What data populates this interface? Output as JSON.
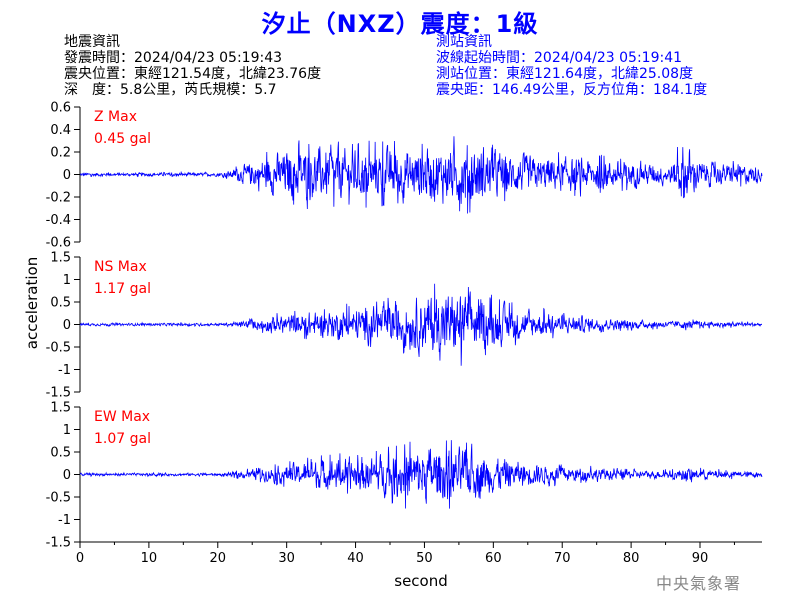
{
  "title": "汐止（NXZ）震度：1級",
  "quake_info": {
    "heading": "地震資訊",
    "time": "發震時間：2024/04/23 05:19:43",
    "epicenter": "震央位置：東經121.54度，北緯23.76度",
    "depth_magnitude": "深　度：5.8公里，芮氏規模：5.7"
  },
  "station_info": {
    "heading": "測站資訊",
    "wave_start": "波線起始時間：2024/04/23 05:19:41",
    "location": "測站位置：東經121.64度，北緯25.08度",
    "distance": "震央距：146.49公里，反方位角：184.1度"
  },
  "credit": "中央氣象署",
  "colors": {
    "title": "#0000ff",
    "trace": "#0000ff",
    "max_label": "#ff0000",
    "station_text": "#0000ff",
    "credit": "#888888"
  },
  "chart_data": {
    "type": "line",
    "xlabel": "second",
    "ylabel": "acceleration",
    "xlim": [
      0,
      99
    ],
    "x_ticks": [
      0,
      10,
      20,
      30,
      40,
      50,
      60,
      70,
      80,
      90
    ],
    "panels": [
      {
        "name": "Z",
        "max_label": "Z Max",
        "max_value": "0.45 gal",
        "ylim": [
          -0.6,
          0.6
        ],
        "y_ticks": [
          -0.6,
          -0.4,
          -0.2,
          0,
          0.2,
          0.4,
          0.6
        ],
        "y_tick_labels": [
          "-0.6",
          "-0.4",
          "-0.2",
          "0",
          "0.2",
          "0.4",
          "0.6"
        ],
        "envelope": [
          [
            0,
            0.02
          ],
          [
            10,
            0.02
          ],
          [
            20,
            0.02
          ],
          [
            22,
            0.05
          ],
          [
            24,
            0.12
          ],
          [
            27,
            0.22
          ],
          [
            30,
            0.28
          ],
          [
            33,
            0.32
          ],
          [
            36,
            0.3
          ],
          [
            40,
            0.3
          ],
          [
            45,
            0.3
          ],
          [
            50,
            0.3
          ],
          [
            55,
            0.36
          ],
          [
            57,
            0.38
          ],
          [
            60,
            0.3
          ],
          [
            63,
            0.24
          ],
          [
            66,
            0.2
          ],
          [
            68,
            0.2
          ],
          [
            70,
            0.2
          ],
          [
            73,
            0.2
          ],
          [
            76,
            0.18
          ],
          [
            80,
            0.15
          ],
          [
            84,
            0.12
          ],
          [
            86,
            0.12
          ],
          [
            87.5,
            0.38
          ],
          [
            88.5,
            0.3
          ],
          [
            90,
            0.16
          ],
          [
            93,
            0.12
          ],
          [
            96,
            0.12
          ],
          [
            99,
            0.1
          ]
        ]
      },
      {
        "name": "NS",
        "max_label": "NS Max",
        "max_value": "1.17 gal",
        "ylim": [
          -1.5,
          1.5
        ],
        "y_ticks": [
          -1.5,
          -1,
          -0.5,
          0,
          0.5,
          1,
          1.5
        ],
        "y_tick_labels": [
          "-1.5",
          "-1",
          "-0.5",
          "0",
          "0.5",
          "1",
          "1.5"
        ],
        "envelope": [
          [
            0,
            0.04
          ],
          [
            10,
            0.04
          ],
          [
            20,
            0.04
          ],
          [
            22,
            0.06
          ],
          [
            24,
            0.12
          ],
          [
            27,
            0.2
          ],
          [
            30,
            0.3
          ],
          [
            33,
            0.36
          ],
          [
            36,
            0.4
          ],
          [
            40,
            0.5
          ],
          [
            44,
            0.6
          ],
          [
            47,
            0.7
          ],
          [
            50,
            0.85
          ],
          [
            53,
            1.0
          ],
          [
            55,
            0.95
          ],
          [
            57,
            0.85
          ],
          [
            60,
            0.65
          ],
          [
            63,
            0.5
          ],
          [
            66,
            0.38
          ],
          [
            70,
            0.3
          ],
          [
            74,
            0.22
          ],
          [
            78,
            0.16
          ],
          [
            82,
            0.12
          ],
          [
            86,
            0.1
          ],
          [
            88,
            0.14
          ],
          [
            90,
            0.1
          ],
          [
            95,
            0.07
          ],
          [
            99,
            0.06
          ]
        ]
      },
      {
        "name": "EW",
        "max_label": "EW Max",
        "max_value": "1.07 gal",
        "ylim": [
          -1.5,
          1.5
        ],
        "y_ticks": [
          -1.5,
          -1,
          -0.5,
          0,
          0.5,
          1,
          1.5
        ],
        "y_tick_labels": [
          "-1.5",
          "-1",
          "-0.5",
          "0",
          "0.5",
          "1",
          "1.5"
        ],
        "envelope": [
          [
            0,
            0.04
          ],
          [
            10,
            0.04
          ],
          [
            20,
            0.04
          ],
          [
            22,
            0.07
          ],
          [
            24,
            0.12
          ],
          [
            27,
            0.2
          ],
          [
            30,
            0.3
          ],
          [
            33,
            0.38
          ],
          [
            36,
            0.45
          ],
          [
            40,
            0.5
          ],
          [
            44,
            0.6
          ],
          [
            47,
            0.75
          ],
          [
            50,
            0.85
          ],
          [
            53,
            0.8
          ],
          [
            56,
            0.75
          ],
          [
            58,
            0.7
          ],
          [
            60,
            0.55
          ],
          [
            63,
            0.42
          ],
          [
            66,
            0.32
          ],
          [
            70,
            0.25
          ],
          [
            74,
            0.2
          ],
          [
            78,
            0.15
          ],
          [
            82,
            0.12
          ],
          [
            86,
            0.12
          ],
          [
            88,
            0.22
          ],
          [
            90,
            0.15
          ],
          [
            95,
            0.1
          ],
          [
            99,
            0.08
          ]
        ]
      }
    ]
  }
}
